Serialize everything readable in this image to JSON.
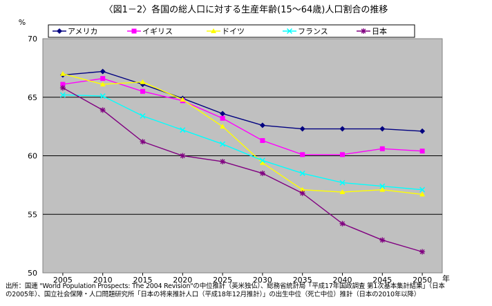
{
  "chart_data": {
    "type": "line",
    "title": "〈図1－2〉各国の総人口に対する生産年齢(15〜64歳)人口割合の推移",
    "ylabel": "%",
    "xlabel": "年",
    "ylim": [
      50,
      70
    ],
    "yticks": [
      50,
      55,
      60,
      65,
      70
    ],
    "grid": true,
    "legend_position": "top",
    "categories": [
      "2005",
      "2010",
      "2015",
      "2020",
      "2025",
      "2030",
      "2035",
      "2040",
      "2045",
      "2050"
    ],
    "series": [
      {
        "name": "アメリカ",
        "color": "#000080",
        "marker": "diamond",
        "values": [
          66.9,
          67.2,
          66.1,
          64.9,
          63.6,
          62.6,
          62.3,
          62.3,
          62.3,
          62.1
        ]
      },
      {
        "name": "イギリス",
        "color": "#ff00ff",
        "marker": "square",
        "values": [
          66.1,
          66.6,
          65.5,
          64.7,
          63.2,
          61.3,
          60.1,
          60.1,
          60.6,
          60.4
        ]
      },
      {
        "name": "ドイツ",
        "color": "#ffff00",
        "marker": "triangle",
        "values": [
          67.0,
          66.1,
          66.3,
          64.8,
          62.5,
          59.4,
          57.1,
          56.9,
          57.1,
          56.7
        ]
      },
      {
        "name": "フランス",
        "color": "#00ffff",
        "marker": "x",
        "values": [
          65.2,
          65.1,
          63.4,
          62.2,
          61.0,
          59.6,
          58.5,
          57.7,
          57.4,
          57.1
        ]
      },
      {
        "name": "日本",
        "color": "#800080",
        "marker": "star",
        "values": [
          65.8,
          63.9,
          61.2,
          60.0,
          59.5,
          58.5,
          56.8,
          54.2,
          52.8,
          51.8
        ]
      }
    ]
  },
  "source": {
    "line1": "出所：国連 \"World Population Prospects: The 2004 Revision\"の中位推計（英米独仏）、総務省統計局「平成17年国政調査 第1次基本集計結果」（日本",
    "line2": "の2005年）、国立社会保障・人口問題研究所「日本の将来推計人口（平成18年12月推計）」の出生中位（死亡中位）推計（日本の2010年以降）"
  }
}
